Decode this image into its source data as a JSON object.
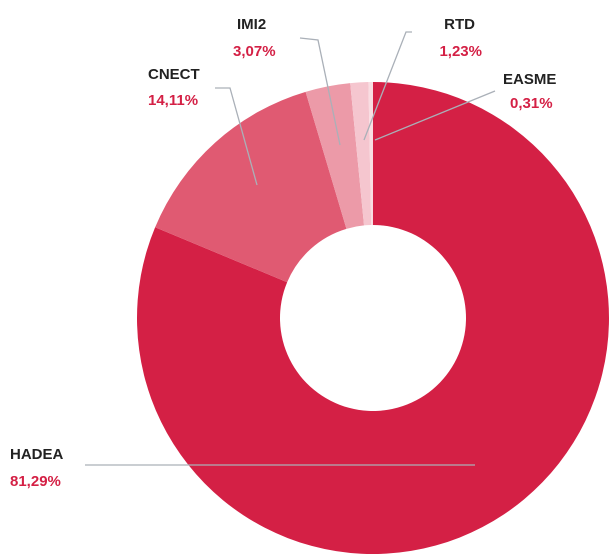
{
  "chart_data": {
    "type": "donut",
    "categories": [
      "HADEA",
      "CNECT",
      "IMI2",
      "RTD",
      "EASME"
    ],
    "values": [
      81.29,
      14.11,
      3.07,
      1.23,
      0.31
    ],
    "value_labels": [
      "81,29%",
      "14,11%",
      "3,07%",
      "1,23%",
      "0,31%"
    ],
    "colors": [
      "#d42045",
      "#e05a72",
      "#ec9aa8",
      "#f5c6cf",
      "#f9dde2"
    ]
  }
}
